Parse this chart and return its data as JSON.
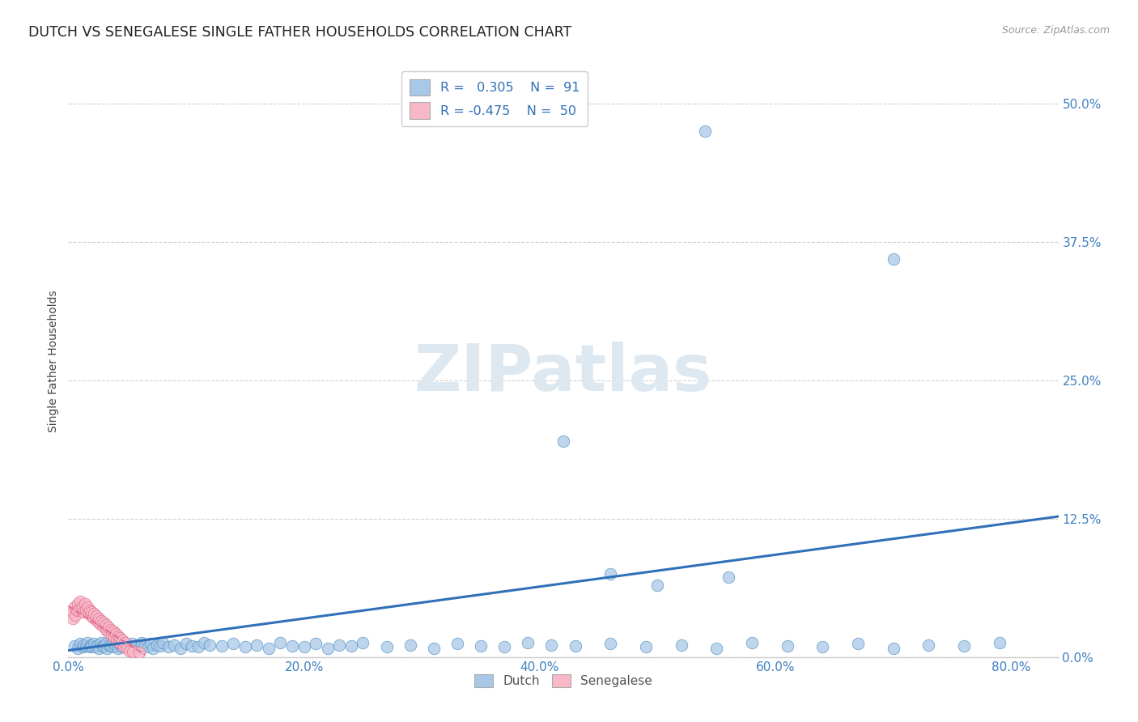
{
  "title": "DUTCH VS SENEGALESE SINGLE FATHER HOUSEHOLDS CORRELATION CHART",
  "source": "Source: ZipAtlas.com",
  "ylabel": "Single Father Households",
  "xlim": [
    0.0,
    0.84
  ],
  "ylim": [
    0.0,
    0.535
  ],
  "x_ticks": [
    0.0,
    0.2,
    0.4,
    0.6,
    0.8
  ],
  "y_ticks": [
    0.0,
    0.125,
    0.25,
    0.375,
    0.5
  ],
  "x_tick_labels": [
    "0.0%",
    "20.0%",
    "40.0%",
    "60.0%",
    "80.0%"
  ],
  "y_tick_labels": [
    "0.0%",
    "12.5%",
    "25.0%",
    "37.5%",
    "50.0%"
  ],
  "dutch_R": 0.305,
  "dutch_N": 91,
  "senegalese_R": -0.475,
  "senegalese_N": 50,
  "dutch_color": "#a8c8e8",
  "dutch_edge_color": "#5090c0",
  "dutch_line_color": "#3070b8",
  "senegalese_color": "#f8b8c8",
  "senegalese_edge_color": "#e07090",
  "senegalese_line_color": "#e07090",
  "background_color": "#ffffff",
  "grid_color": "#cccccc",
  "tick_color": "#4080c0",
  "title_color": "#222222",
  "source_color": "#999999",
  "watermark_color": "#dde8f0",
  "ylabel_color": "#444444",
  "dutch_x": [
    0.005,
    0.008,
    0.01,
    0.012,
    0.013,
    0.015,
    0.016,
    0.018,
    0.019,
    0.02,
    0.022,
    0.023,
    0.025,
    0.026,
    0.028,
    0.029,
    0.03,
    0.032,
    0.033,
    0.035,
    0.036,
    0.038,
    0.039,
    0.04,
    0.042,
    0.043,
    0.045,
    0.046,
    0.048,
    0.05,
    0.052,
    0.054,
    0.056,
    0.058,
    0.06,
    0.062,
    0.065,
    0.068,
    0.07,
    0.072,
    0.075,
    0.078,
    0.08,
    0.085,
    0.09,
    0.095,
    0.1,
    0.105,
    0.11,
    0.115,
    0.12,
    0.13,
    0.14,
    0.15,
    0.16,
    0.17,
    0.18,
    0.19,
    0.2,
    0.21,
    0.22,
    0.23,
    0.24,
    0.25,
    0.27,
    0.29,
    0.31,
    0.33,
    0.35,
    0.37,
    0.39,
    0.41,
    0.43,
    0.46,
    0.49,
    0.52,
    0.55,
    0.58,
    0.61,
    0.64,
    0.67,
    0.7,
    0.73,
    0.76,
    0.79,
    0.54,
    0.7,
    0.42,
    0.46,
    0.5,
    0.56
  ],
  "dutch_y": [
    0.01,
    0.008,
    0.012,
    0.009,
    0.011,
    0.01,
    0.013,
    0.009,
    0.011,
    0.01,
    0.012,
    0.009,
    0.011,
    0.008,
    0.013,
    0.01,
    0.009,
    0.012,
    0.008,
    0.011,
    0.01,
    0.013,
    0.009,
    0.011,
    0.008,
    0.012,
    0.01,
    0.009,
    0.013,
    0.011,
    0.01,
    0.012,
    0.009,
    0.011,
    0.008,
    0.013,
    0.01,
    0.009,
    0.012,
    0.008,
    0.011,
    0.01,
    0.013,
    0.009,
    0.011,
    0.008,
    0.012,
    0.01,
    0.009,
    0.013,
    0.011,
    0.01,
    0.012,
    0.009,
    0.011,
    0.008,
    0.013,
    0.01,
    0.009,
    0.012,
    0.008,
    0.011,
    0.01,
    0.013,
    0.009,
    0.011,
    0.008,
    0.012,
    0.01,
    0.009,
    0.013,
    0.011,
    0.01,
    0.012,
    0.009,
    0.011,
    0.008,
    0.013,
    0.01,
    0.009,
    0.012,
    0.008,
    0.011,
    0.01,
    0.013,
    0.475,
    0.36,
    0.195,
    0.075,
    0.065,
    0.072
  ],
  "sene_x": [
    0.003,
    0.004,
    0.005,
    0.006,
    0.007,
    0.008,
    0.009,
    0.01,
    0.011,
    0.012,
    0.013,
    0.014,
    0.015,
    0.016,
    0.017,
    0.018,
    0.019,
    0.02,
    0.021,
    0.022,
    0.023,
    0.024,
    0.025,
    0.026,
    0.027,
    0.028,
    0.029,
    0.03,
    0.031,
    0.032,
    0.033,
    0.034,
    0.035,
    0.036,
    0.037,
    0.038,
    0.039,
    0.04,
    0.041,
    0.042,
    0.043,
    0.044,
    0.045,
    0.046,
    0.047,
    0.048,
    0.05,
    0.052,
    0.055,
    0.06
  ],
  "sene_y": [
    0.04,
    0.035,
    0.045,
    0.038,
    0.042,
    0.048,
    0.043,
    0.05,
    0.044,
    0.046,
    0.041,
    0.048,
    0.043,
    0.045,
    0.04,
    0.042,
    0.038,
    0.041,
    0.036,
    0.039,
    0.034,
    0.037,
    0.032,
    0.035,
    0.03,
    0.033,
    0.028,
    0.031,
    0.026,
    0.029,
    0.024,
    0.027,
    0.022,
    0.025,
    0.02,
    0.023,
    0.018,
    0.021,
    0.016,
    0.019,
    0.014,
    0.017,
    0.012,
    0.015,
    0.01,
    0.013,
    0.008,
    0.006,
    0.005,
    0.004
  ],
  "dutch_trend_x": [
    0.0,
    0.84
  ],
  "dutch_trend_y": [
    0.006,
    0.127
  ],
  "sene_trend_x": [
    0.0,
    0.065
  ],
  "sene_trend_y": [
    0.046,
    0.002
  ]
}
